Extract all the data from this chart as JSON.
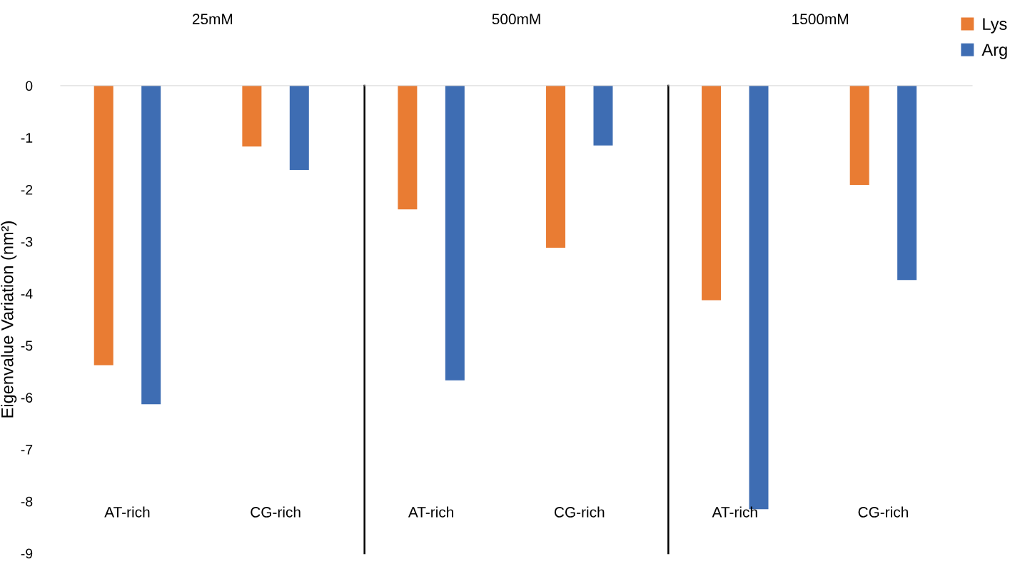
{
  "chart_data": [
    {
      "type": "bar",
      "title": "25mM",
      "ylabel": "Eigenvalue Variation (nm²)",
      "categories": [
        "AT-rich",
        "CG-rich"
      ],
      "series": [
        {
          "color": "#e97c33",
          "values": [
            -5.38,
            -1.17
          ]
        },
        {
          "color": "#3e6db3",
          "values": [
            -6.13,
            -1.62
          ]
        }
      ],
      "ylim": [
        -9,
        0
      ],
      "yticks": [
        0,
        -1,
        -2,
        -3,
        -4,
        -5,
        -6,
        -7,
        -8,
        -9
      ],
      "grid": false,
      "legend": false
    },
    {
      "type": "bar",
      "title": "500mM",
      "categories": [
        "AT-rich",
        "CG-rich"
      ],
      "series": [
        {
          "color": "#e97c33",
          "values": [
            -2.38,
            -3.12
          ]
        },
        {
          "color": "#3e6db3",
          "values": [
            -5.67,
            -1.15
          ]
        }
      ],
      "ylim": [
        -9,
        0
      ],
      "tick_labels": "x",
      "grid": false,
      "legend": false
    },
    {
      "type": "bar",
      "title": "1500mM",
      "categories": [
        "AT-rich",
        "CG-rich"
      ],
      "series": [
        {
          "name": "Lys",
          "color": "#e97c33",
          "values": [
            -4.13,
            -1.91
          ]
        },
        {
          "name": "Arg",
          "color": "#3e6db3",
          "values": [
            -8.15,
            -3.74
          ]
        }
      ],
      "ylim": [
        -9,
        0
      ],
      "tick_labels": "x",
      "grid": false,
      "legend": "top right"
    }
  ]
}
